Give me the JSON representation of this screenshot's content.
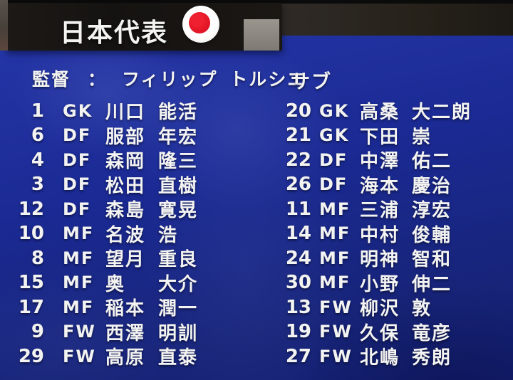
{
  "header": {
    "title": "日本代表",
    "flag_icon": "japan-flag"
  },
  "manager": {
    "label": "監督",
    "separator": "：",
    "name": "フィリップ トルシエ"
  },
  "starters": {
    "players": [
      {
        "number": "1",
        "position": "GK",
        "surname": "川口",
        "given": "能活"
      },
      {
        "number": "6",
        "position": "DF",
        "surname": "服部",
        "given": "年宏"
      },
      {
        "number": "4",
        "position": "DF",
        "surname": "森岡",
        "given": "隆三"
      },
      {
        "number": "3",
        "position": "DF",
        "surname": "松田",
        "given": "直樹"
      },
      {
        "number": "12",
        "position": "DF",
        "surname": "森島",
        "given": "寛晃"
      },
      {
        "number": "10",
        "position": "MF",
        "surname": "名波",
        "given": "浩"
      },
      {
        "number": "8",
        "position": "MF",
        "surname": "望月",
        "given": "重良"
      },
      {
        "number": "15",
        "position": "MF",
        "surname": "奥",
        "given": "大介"
      },
      {
        "number": "17",
        "position": "MF",
        "surname": "稲本",
        "given": "潤一"
      },
      {
        "number": "9",
        "position": "FW",
        "surname": "西澤",
        "given": "明訓"
      },
      {
        "number": "29",
        "position": "FW",
        "surname": "高原",
        "given": "直泰"
      }
    ]
  },
  "subs": {
    "heading": "サブ",
    "players": [
      {
        "number": "20",
        "position": "GK",
        "surname": "高桑",
        "given": "大二朗"
      },
      {
        "number": "21",
        "position": "GK",
        "surname": "下田",
        "given": "崇"
      },
      {
        "number": "22",
        "position": "DF",
        "surname": "中澤",
        "given": "佑二"
      },
      {
        "number": "26",
        "position": "DF",
        "surname": "海本",
        "given": "慶治"
      },
      {
        "number": "11",
        "position": "MF",
        "surname": "三浦",
        "given": "淳宏"
      },
      {
        "number": "14",
        "position": "MF",
        "surname": "中村",
        "given": "俊輔"
      },
      {
        "number": "24",
        "position": "MF",
        "surname": "明神",
        "given": "智和"
      },
      {
        "number": "30",
        "position": "MF",
        "surname": "小野",
        "given": "伸二"
      },
      {
        "number": "13",
        "position": "FW",
        "surname": "柳沢",
        "given": "敦"
      },
      {
        "number": "19",
        "position": "FW",
        "surname": "久保",
        "given": "竜彦"
      },
      {
        "number": "27",
        "position": "FW",
        "surname": "北嶋",
        "given": "秀朗"
      }
    ]
  },
  "colors": {
    "panel_blue": "#1b2a94",
    "panel_blue_light": "#2435a6",
    "panel_blue_dark": "#131f72",
    "band_black": "#151311",
    "text_white": "#f3f3f1",
    "flag_red": "#dd1222",
    "flag_white": "#efede8"
  }
}
